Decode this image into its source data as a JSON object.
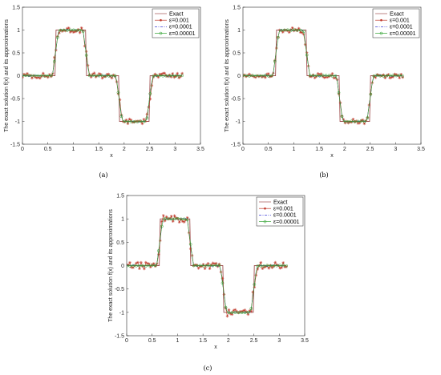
{
  "chart_data": [
    {
      "type": "line",
      "caption": "(a)",
      "xlabel": "x",
      "ylabel": "The exact solution f(x) and its approximations",
      "xlim": [
        0,
        3.5
      ],
      "ylim": [
        -1.5,
        1.5
      ],
      "xticks": [
        "0",
        "0.5",
        "1",
        "1.5",
        "2",
        "2.5",
        "3",
        "3.5"
      ],
      "yticks": [
        "-1.5",
        "-1",
        "-0.5",
        "0",
        "0.5",
        "1",
        "1.5"
      ],
      "legend_position": "top-right",
      "series": [
        {
          "name": "Exact",
          "color": "#a05050",
          "style": "solid",
          "x": [
            0,
            0.64,
            0.65,
            0.66,
            1.24,
            1.25,
            1.26,
            1.89,
            1.9,
            1.91,
            2.49,
            2.5,
            2.51,
            3.14
          ],
          "y": [
            0,
            0,
            0.5,
            1,
            1,
            0.5,
            0,
            0,
            -0.5,
            -1,
            -1,
            -0.5,
            0,
            0
          ]
        },
        {
          "name": "ε=0.001",
          "color": "#c0392b",
          "marker": "star",
          "noise": 0.06,
          "ripple": 0.08
        },
        {
          "name": "ε=0.0001",
          "color": "#3b3bd6",
          "style": "dash-dot",
          "noise": 0.015
        },
        {
          "name": "ε=0.00001",
          "color": "#2ca02c",
          "marker": "circle",
          "noise": 0.008
        }
      ]
    },
    {
      "type": "line",
      "caption": "(b)",
      "xlabel": "x",
      "ylabel": "The exact solution f(x) and its approximations",
      "xlim": [
        0,
        3.5
      ],
      "ylim": [
        -1.5,
        1.5
      ],
      "xticks": [
        "0",
        "0.5",
        "1",
        "1.5",
        "2",
        "2.5",
        "3",
        "3.5"
      ],
      "yticks": [
        "-1.5",
        "-1",
        "-0.5",
        "0",
        "0.5",
        "1",
        "1.5"
      ],
      "legend_position": "top-right",
      "series": [
        {
          "name": "Exact",
          "color": "#a05050",
          "style": "solid",
          "x": [
            0,
            0.64,
            0.65,
            0.66,
            1.24,
            1.25,
            1.26,
            1.89,
            1.9,
            1.91,
            2.49,
            2.5,
            2.51,
            3.14
          ],
          "y": [
            0,
            0,
            0.5,
            1,
            1,
            0.5,
            0,
            0,
            -0.5,
            -1,
            -1,
            -0.5,
            0,
            0
          ]
        },
        {
          "name": "ε=0.001",
          "color": "#c0392b",
          "marker": "star",
          "noise": 0.05,
          "ripple": 0.07
        },
        {
          "name": "ε=0.0001",
          "color": "#3b3bd6",
          "style": "dash-dot",
          "noise": 0.015
        },
        {
          "name": "ε=0.00001",
          "color": "#2ca02c",
          "marker": "circle",
          "noise": 0.008
        }
      ]
    },
    {
      "type": "line",
      "caption": "(c)",
      "xlabel": "x",
      "ylabel": "The exact solution f(x) and its approximations",
      "xlim": [
        0,
        3.5
      ],
      "ylim": [
        -1.5,
        1.5
      ],
      "xticks": [
        "0",
        "0.5",
        "1",
        "1.5",
        "2",
        "2.5",
        "3",
        "3.5"
      ],
      "yticks": [
        "-1.5",
        "-1",
        "-0.5",
        "0",
        "0.5",
        "1",
        "1.5"
      ],
      "legend_position": "top-right",
      "series": [
        {
          "name": "Exact",
          "color": "#a05050",
          "style": "solid",
          "x": [
            0,
            0.64,
            0.65,
            0.66,
            1.24,
            1.25,
            1.26,
            1.89,
            1.9,
            1.91,
            2.49,
            2.5,
            2.51,
            3.14
          ],
          "y": [
            0,
            0,
            0.5,
            1,
            1,
            0.5,
            0,
            0,
            -0.5,
            -1,
            -1,
            -0.5,
            0,
            0
          ]
        },
        {
          "name": "ε=0.001",
          "color": "#c0392b",
          "marker": "star",
          "noise": 0.07,
          "ripple": 0.1
        },
        {
          "name": "ε=0.0001",
          "color": "#3b3bd6",
          "style": "dash-dot",
          "noise": 0.015
        },
        {
          "name": "ε=0.00001",
          "color": "#2ca02c",
          "marker": "circle",
          "noise": 0.008
        }
      ]
    }
  ]
}
